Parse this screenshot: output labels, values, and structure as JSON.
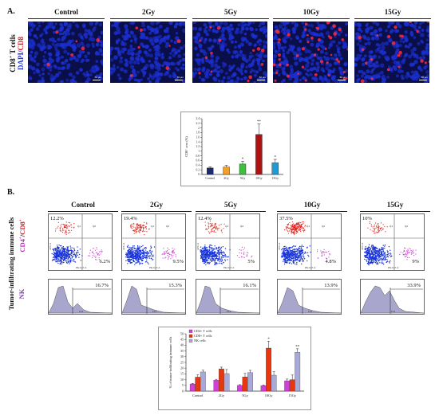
{
  "panel_a": {
    "label": "A.",
    "groups": [
      "Control",
      "2Gy",
      "5Gy",
      "10Gy",
      "15Gy"
    ],
    "ylabel_prefix": "CD8",
    "ylabel_sup": "+",
    "ylabel_rest": " T cells",
    "ylabel2_dapi": "DAPI/",
    "ylabel2_cd8": "CD8",
    "scale_text": "50 μm",
    "colors": {
      "dapi": "#1b2fd0",
      "cd8": "#ff2a3a",
      "background": "#0a0f4a"
    }
  },
  "panel_b": {
    "label": "B.",
    "groups": [
      "Control",
      "2Gy",
      "5Gy",
      "10Gy",
      "15Gy"
    ],
    "ylabel_main": "Tumor-infiltrating immune cells",
    "ylabel_cd4": "CD4",
    "ylabel_sep": "/",
    "ylabel_cd8": "CD8",
    "ylabel_sup": "+",
    "nk_label": "NK",
    "flow_ul": [
      "12.2%",
      "19.4%",
      "12.4%",
      "37.5%",
      "10%"
    ],
    "flow_lr": [
      "6.2%",
      "9.5%",
      "5%",
      "4.8%",
      "9%"
    ],
    "flow_xaxis": "PE-Cy7-A",
    "flow_yaxis": "APC-A",
    "flow_quads": [
      "Q1",
      "Q2"
    ],
    "hist_pct": [
      "16.7%",
      "15.3%",
      "16.1%",
      "13.9%",
      "33.9%"
    ],
    "hist_xaxis": "FL4"
  },
  "chart_data": [
    {
      "type": "bar",
      "title": "",
      "ylabel": "CD8⁺ area (%)",
      "xlabel": "",
      "categories": [
        "Control",
        "2Gy",
        "5Gy",
        "10Gy",
        "15Gy"
      ],
      "values": [
        0.28,
        0.32,
        0.45,
        1.72,
        0.5
      ],
      "errors": [
        0.05,
        0.08,
        0.12,
        0.45,
        0.15
      ],
      "significance": [
        "",
        "",
        "*",
        "**",
        "*"
      ],
      "bar_colors": [
        "#1d2a6b",
        "#f0a030",
        "#3fbf3f",
        "#b01212",
        "#1e9bd6"
      ],
      "ylim": [
        0,
        2.4
      ],
      "yticks": [
        "0",
        "0.2",
        "0.4",
        "0.6",
        "0.8",
        "1",
        "1.2",
        "1.4",
        "1.6",
        "1.8",
        "2",
        "2.2",
        "2.4"
      ]
    },
    {
      "type": "bar",
      "title": "",
      "ylabel": "% of tumor-infiltrating immune cells",
      "xlabel": "",
      "categories": [
        "Control",
        "2Gy",
        "5Gy",
        "10Gy",
        "15Gy"
      ],
      "series": [
        {
          "name": "CD4+ T cells",
          "color": "#d23fd6",
          "values": [
            6.2,
            9.5,
            5,
            4.8,
            9
          ],
          "errors": [
            0.5,
            0.8,
            0.6,
            0.6,
            1.5
          ]
        },
        {
          "name": "CD8+ T cells",
          "color": "#e8370f",
          "values": [
            12.2,
            19.4,
            12.4,
            37.5,
            10
          ],
          "errors": [
            2,
            1.5,
            3,
            6,
            4
          ]
        },
        {
          "name": "NK cells",
          "color": "#a9a9d8",
          "values": [
            16.7,
            15.3,
            16.1,
            13.9,
            33.9
          ],
          "errors": [
            1.5,
            3.5,
            2,
            3,
            3
          ]
        }
      ],
      "significance": [
        "",
        "",
        "",
        "*",
        "**"
      ],
      "ylim": [
        0,
        50
      ],
      "yticks": [
        "0",
        "5",
        "10",
        "15",
        "20",
        "25",
        "30",
        "35",
        "40",
        "45",
        "50"
      ],
      "legend_position": "top-left"
    }
  ]
}
